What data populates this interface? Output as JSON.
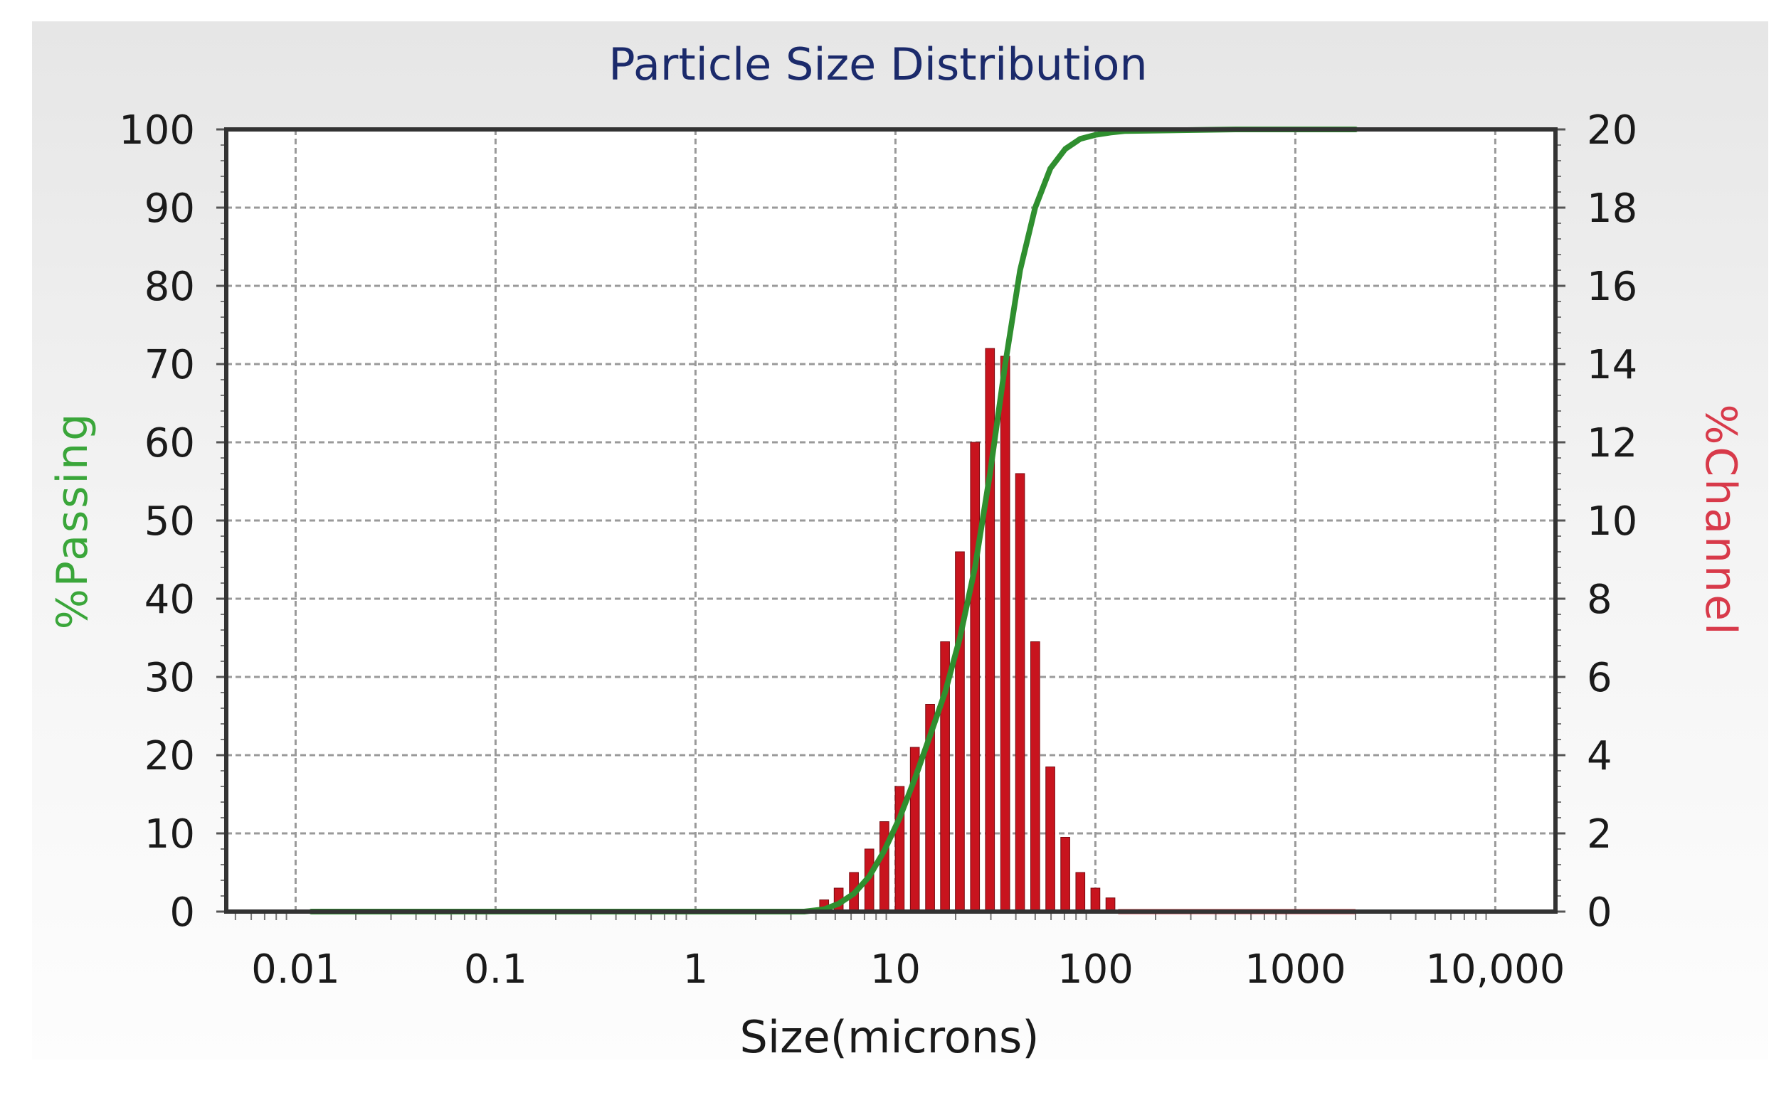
{
  "chart_data": {
    "type": "bar",
    "title": "Particle Size Distribution",
    "xlabel": "Size(microns)",
    "ylabel_left": "%Passing",
    "ylabel_right": "%Channel",
    "x_scale": "log",
    "xlim": [
      0.0045,
      20000
    ],
    "ylim_left": [
      0,
      100
    ],
    "ylim_right": [
      0,
      20
    ],
    "grid": true,
    "x_ticks": [
      {
        "value": 0.01,
        "label": "0.01"
      },
      {
        "value": 0.1,
        "label": "0.1"
      },
      {
        "value": 1,
        "label": "1"
      },
      {
        "value": 10,
        "label": "10"
      },
      {
        "value": 100,
        "label": "100"
      },
      {
        "value": 1000,
        "label": "1000"
      },
      {
        "value": 10000,
        "label": "10,000"
      }
    ],
    "y_ticks_left": [
      {
        "value": 0,
        "label": "0"
      },
      {
        "value": 10,
        "label": "10"
      },
      {
        "value": 20,
        "label": "20"
      },
      {
        "value": 30,
        "label": "30"
      },
      {
        "value": 40,
        "label": "40"
      },
      {
        "value": 50,
        "label": "50"
      },
      {
        "value": 60,
        "label": "60"
      },
      {
        "value": 70,
        "label": "70"
      },
      {
        "value": 80,
        "label": "80"
      },
      {
        "value": 90,
        "label": "90"
      },
      {
        "value": 100,
        "label": "100"
      }
    ],
    "y_ticks_right": [
      {
        "value": 0,
        "label": "0"
      },
      {
        "value": 2,
        "label": "2"
      },
      {
        "value": 4,
        "label": "4"
      },
      {
        "value": 6,
        "label": "6"
      },
      {
        "value": 8,
        "label": "8"
      },
      {
        "value": 10,
        "label": "10"
      },
      {
        "value": 12,
        "label": "12"
      },
      {
        "value": 14,
        "label": "14"
      },
      {
        "value": 16,
        "label": "16"
      },
      {
        "value": 18,
        "label": "18"
      },
      {
        "value": 20,
        "label": "20"
      }
    ],
    "series": [
      {
        "axis": "right",
        "kind": "bar",
        "color": "#c8141e",
        "x": [
          4.4,
          5.2,
          6.2,
          7.4,
          8.8,
          10.5,
          12.5,
          14.9,
          17.7,
          21.0,
          25.0,
          29.7,
          35.4,
          42.0,
          50.0,
          59.5,
          70.7,
          84.1,
          100.0,
          118.9
        ],
        "values": [
          0.3,
          0.6,
          1.0,
          1.6,
          2.3,
          3.2,
          4.2,
          5.3,
          6.9,
          9.2,
          12.0,
          14.4,
          14.2,
          11.2,
          6.9,
          3.7,
          1.9,
          1.0,
          0.6,
          0.35
        ]
      },
      {
        "axis": "left",
        "kind": "line",
        "color": "#2f8f2f",
        "x": [
          0.012,
          0.1,
          1,
          3.5,
          4.4,
          5.2,
          6.2,
          7.4,
          8.8,
          10.5,
          12.5,
          14.9,
          17.7,
          21.0,
          25.0,
          29.7,
          35.4,
          42.0,
          50.0,
          59.5,
          70.7,
          84.1,
          100.0,
          118.9,
          141.4,
          500,
          2000
        ],
        "values": [
          0,
          0,
          0,
          0,
          0.3,
          1.0,
          2.3,
          4.5,
          7.8,
          12.0,
          17.0,
          22.5,
          28.0,
          35.0,
          44.0,
          56.0,
          70.0,
          82.0,
          90.0,
          95.0,
          97.5,
          98.8,
          99.3,
          99.6,
          99.8,
          100,
          100
        ]
      },
      {
        "axis": "right",
        "kind": "baseline",
        "color": "#c8141e",
        "x": [
          130,
          2000
        ],
        "values": [
          0,
          0
        ]
      }
    ]
  }
}
